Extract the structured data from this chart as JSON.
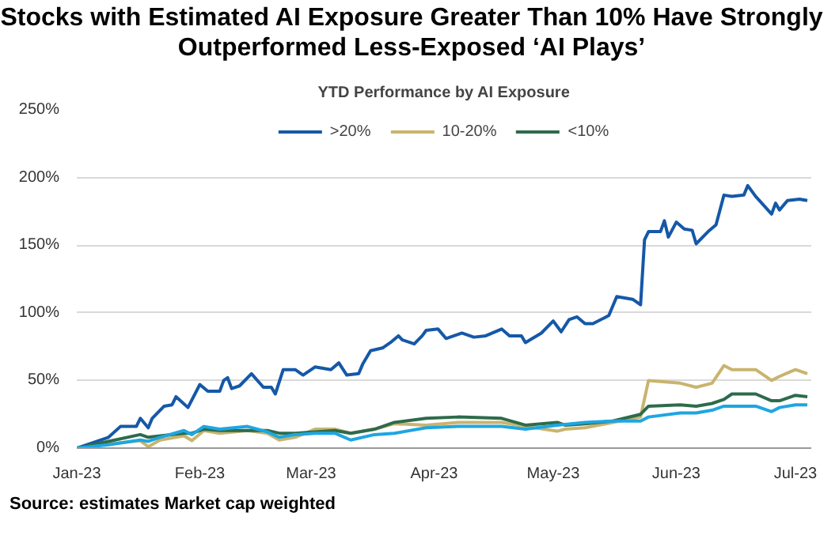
{
  "chart_data": {
    "type": "line",
    "title": "Stocks with Estimated AI Exposure Greater Than 10% Have Strongly Outperformed Less-Exposed ‘AI Plays’",
    "subtitle": "YTD Performance by AI Exposure",
    "annotations": [
      "Source: estimates Market cap weighted"
    ],
    "series": [
      {
        "name": ">20%",
        "color": "#1558a8",
        "x": [
          "2023-01-01",
          "2023-01-09",
          "2023-01-12",
          "2023-01-16",
          "2023-01-17",
          "2023-01-19",
          "2023-01-20",
          "2023-01-23",
          "2023-01-25",
          "2023-01-26",
          "2023-01-29",
          "2023-02-01",
          "2023-02-03",
          "2023-02-06",
          "2023-02-07",
          "2023-02-08",
          "2023-02-09",
          "2023-02-11",
          "2023-02-14",
          "2023-02-17",
          "2023-02-19",
          "2023-02-20",
          "2023-02-22",
          "2023-02-25",
          "2023-02-27",
          "2023-03-02",
          "2023-03-06",
          "2023-03-08",
          "2023-03-10",
          "2023-03-13",
          "2023-03-14",
          "2023-03-16",
          "2023-03-19",
          "2023-03-21",
          "2023-03-23",
          "2023-03-24",
          "2023-03-27",
          "2023-03-29",
          "2023-03-30",
          "2023-04-02",
          "2023-04-04",
          "2023-04-08",
          "2023-04-11",
          "2023-04-14",
          "2023-04-18",
          "2023-04-20",
          "2023-04-23",
          "2023-04-24",
          "2023-04-28",
          "2023-05-01",
          "2023-05-03",
          "2023-05-05",
          "2023-05-07",
          "2023-05-09",
          "2023-05-11",
          "2023-05-15",
          "2023-05-17",
          "2023-05-21",
          "2023-05-23",
          "2023-05-24",
          "2023-05-25",
          "2023-05-28",
          "2023-05-29",
          "2023-05-30",
          "2023-06-01",
          "2023-06-03",
          "2023-06-05",
          "2023-06-06",
          "2023-06-09",
          "2023-06-11",
          "2023-06-13",
          "2023-06-15",
          "2023-06-18",
          "2023-06-19",
          "2023-06-21",
          "2023-06-25",
          "2023-06-26",
          "2023-06-27",
          "2023-06-29",
          "2023-07-02",
          "2023-07-04"
        ],
        "values": [
          0,
          8,
          16,
          16,
          22,
          15,
          22,
          31,
          32,
          38,
          30,
          47,
          42,
          42,
          50,
          52,
          44,
          46,
          55,
          45,
          45,
          40,
          58,
          58,
          54,
          60,
          58,
          63,
          54,
          55,
          62,
          72,
          74,
          78,
          83,
          80,
          77,
          83,
          87,
          88,
          81,
          85,
          82,
          83,
          88,
          83,
          83,
          78,
          85,
          94,
          86,
          95,
          97,
          92,
          92,
          98,
          112,
          110,
          106,
          154,
          160,
          160,
          168,
          156,
          167,
          162,
          161,
          151,
          160,
          165,
          187,
          186,
          187,
          194,
          186,
          173,
          181,
          176,
          183,
          184,
          183
        ]
      },
      {
        "name": "10-20%",
        "color": "#c9b46e",
        "x": [
          "2023-01-01",
          "2023-01-09",
          "2023-01-17",
          "2023-01-19",
          "2023-01-22",
          "2023-01-28",
          "2023-01-30",
          "2023-02-02",
          "2023-02-06",
          "2023-02-13",
          "2023-02-18",
          "2023-02-21",
          "2023-02-25",
          "2023-03-02",
          "2023-03-07",
          "2023-03-11",
          "2023-03-17",
          "2023-03-22",
          "2023-03-30",
          "2023-04-07",
          "2023-04-18",
          "2023-04-24",
          "2023-05-02",
          "2023-05-04",
          "2023-05-09",
          "2023-05-16",
          "2023-05-23",
          "2023-05-25",
          "2023-06-02",
          "2023-06-06",
          "2023-06-10",
          "2023-06-13",
          "2023-06-15",
          "2023-06-21",
          "2023-06-25",
          "2023-06-27",
          "2023-07-01",
          "2023-07-04"
        ],
        "values": [
          0,
          3,
          5.5,
          1,
          6,
          9,
          5.5,
          13,
          11,
          13,
          11,
          6,
          8,
          14,
          14,
          11,
          14,
          18,
          17,
          19,
          19,
          16,
          12.5,
          14,
          15,
          19,
          23,
          50,
          48,
          45,
          48,
          61,
          58,
          58,
          50,
          53,
          58,
          55
        ]
      },
      {
        "name": "<10%",
        "color": "#2d6b4b",
        "x": [
          "2023-01-01",
          "2023-01-09",
          "2023-01-17",
          "2023-01-19",
          "2023-01-22",
          "2023-01-28",
          "2023-01-30",
          "2023-02-02",
          "2023-02-06",
          "2023-02-13",
          "2023-02-18",
          "2023-02-21",
          "2023-02-25",
          "2023-03-02",
          "2023-03-07",
          "2023-03-11",
          "2023-03-17",
          "2023-03-22",
          "2023-03-30",
          "2023-04-07",
          "2023-04-18",
          "2023-04-24",
          "2023-05-02",
          "2023-05-04",
          "2023-05-09",
          "2023-05-16",
          "2023-05-23",
          "2023-05-25",
          "2023-06-02",
          "2023-06-06",
          "2023-06-10",
          "2023-06-13",
          "2023-06-15",
          "2023-06-21",
          "2023-06-25",
          "2023-06-27",
          "2023-07-01",
          "2023-07-04"
        ],
        "values": [
          0,
          5,
          10,
          8,
          9,
          11,
          11,
          14,
          13,
          13,
          13,
          11,
          11,
          12,
          13,
          11,
          14,
          19,
          22,
          23,
          22,
          17,
          19,
          17,
          18,
          20,
          25,
          31,
          32,
          31,
          33,
          36,
          40,
          40,
          35,
          35,
          39,
          38
        ]
      },
      {
        "color": "#1ea6e2",
        "x": [
          "2023-01-01",
          "2023-01-09",
          "2023-01-17",
          "2023-01-19",
          "2023-01-22",
          "2023-01-28",
          "2023-01-30",
          "2023-02-02",
          "2023-02-06",
          "2023-02-13",
          "2023-02-18",
          "2023-02-21",
          "2023-02-25",
          "2023-03-02",
          "2023-03-07",
          "2023-03-11",
          "2023-03-17",
          "2023-03-22",
          "2023-03-30",
          "2023-04-07",
          "2023-04-18",
          "2023-04-24",
          "2023-05-02",
          "2023-05-09",
          "2023-05-16",
          "2023-05-23",
          "2023-05-25",
          "2023-06-02",
          "2023-06-06",
          "2023-06-10",
          "2023-06-13",
          "2023-06-15",
          "2023-06-21",
          "2023-06-25",
          "2023-06-27",
          "2023-07-01",
          "2023-07-04"
        ],
        "values": [
          0,
          2.5,
          6,
          5,
          8,
          13,
          10,
          16,
          14,
          16,
          12,
          8,
          10,
          11,
          11,
          6,
          10,
          11,
          15,
          16,
          16,
          14,
          17,
          19,
          20,
          20,
          23,
          26,
          26,
          28,
          31,
          31,
          31,
          27,
          30,
          32,
          32
        ]
      }
    ],
    "xlim": [
      "2023-01-01",
      "2023-07-05"
    ],
    "xticks": [
      {
        "value": "2023-01-01",
        "label": "Jan-23"
      },
      {
        "value": "2023-02-01",
        "label": "Feb-23"
      },
      {
        "value": "2023-03-01",
        "label": "Mar-23"
      },
      {
        "value": "2023-04-01",
        "label": "Apr-23"
      },
      {
        "value": "2023-05-01",
        "label": "May-23"
      },
      {
        "value": "2023-06-01",
        "label": "Jun-23"
      },
      {
        "value": "2023-07-01",
        "label": "Jul-23"
      }
    ],
    "ylim": [
      0,
      250
    ],
    "yticks": [
      {
        "value": 0,
        "label": "0%"
      },
      {
        "value": 50,
        "label": "50%"
      },
      {
        "value": 100,
        "label": "100%"
      },
      {
        "value": 150,
        "label": "150%"
      },
      {
        "value": 200,
        "label": "200%"
      },
      {
        "value": 250,
        "label": "250%"
      }
    ],
    "grid": "y",
    "legend": "top",
    "marker": "none",
    "line_style": "solid"
  }
}
